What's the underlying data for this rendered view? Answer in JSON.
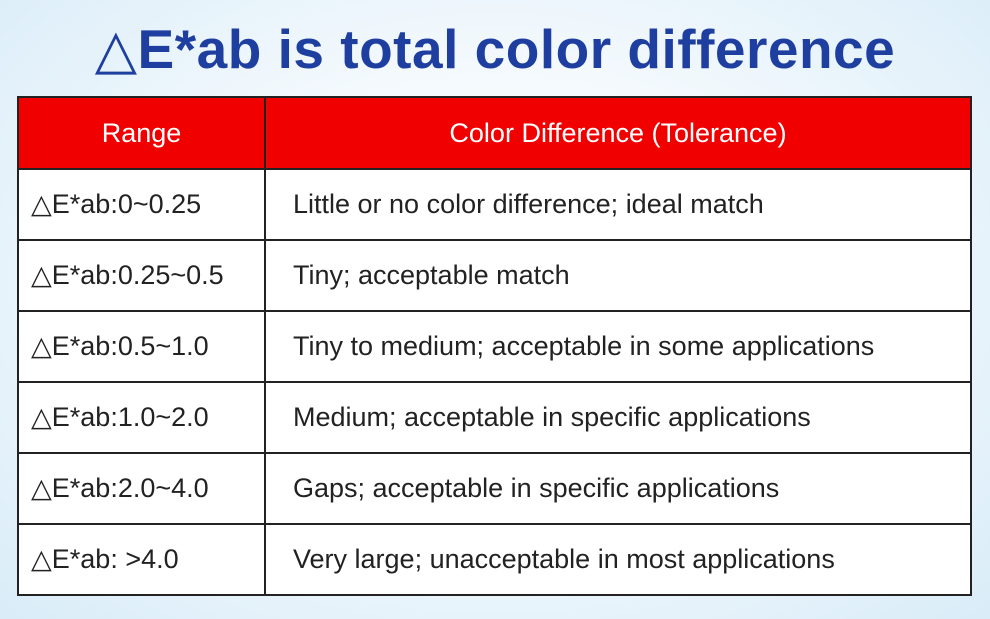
{
  "title": "△E*ab is total color difference",
  "table": {
    "headers": [
      "Range",
      "Color Difference (Tolerance)"
    ],
    "rows": [
      {
        "range": "△E*ab:0~0.25",
        "tolerance": "Little or no color difference; ideal match"
      },
      {
        "range": "△E*ab:0.25~0.5",
        "tolerance": "Tiny; acceptable match"
      },
      {
        "range": "△E*ab:0.5~1.0",
        "tolerance": "Tiny to medium; acceptable in some applications"
      },
      {
        "range": "△E*ab:1.0~2.0",
        "tolerance": "Medium; acceptable in specific applications"
      },
      {
        "range": "△E*ab:2.0~4.0",
        "tolerance": "Gaps; acceptable in specific applications"
      },
      {
        "range": "△E*ab: >4.0",
        "tolerance": "Very large; unacceptable in most applications"
      }
    ]
  },
  "colors": {
    "title": "#1f3fa0",
    "header_bg": "#f10000",
    "header_text": "#ffffff",
    "border": "#222222"
  }
}
